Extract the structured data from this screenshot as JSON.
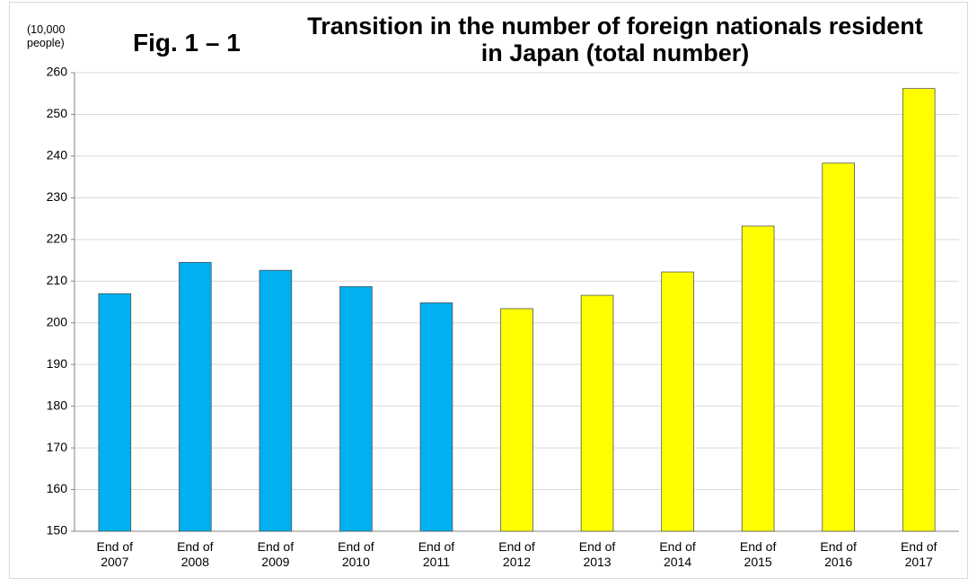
{
  "chart_data": {
    "type": "bar",
    "title": "Transition in the number of foreign nationals resident in Japan (total number)",
    "figure_label": "Fig. 1 – 1",
    "y_axis_label": "(10,000 people)",
    "categories": [
      "End of 2007",
      "End of 2008",
      "End of 2009",
      "End of 2010",
      "End of 2011",
      "End of 2012",
      "End of 2013",
      "End of 2014",
      "End of 2015",
      "End of 2016",
      "End of 2017"
    ],
    "values": [
      207.0,
      214.5,
      212.6,
      208.7,
      204.8,
      203.4,
      206.6,
      212.2,
      223.2,
      238.3,
      256.2
    ],
    "colors": [
      "#00b0f0",
      "#00b0f0",
      "#00b0f0",
      "#00b0f0",
      "#00b0f0",
      "#ffff00",
      "#ffff00",
      "#ffff00",
      "#ffff00",
      "#ffff00",
      "#ffff00"
    ],
    "ylim": [
      150,
      260
    ],
    "yticks": [
      150,
      160,
      170,
      180,
      190,
      200,
      210,
      220,
      230,
      240,
      250,
      260
    ],
    "grid": true
  }
}
